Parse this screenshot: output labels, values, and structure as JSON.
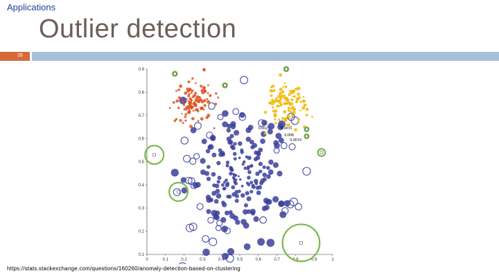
{
  "header": {
    "section": "Applications",
    "title": "Outlier detection",
    "slide_number": "28"
  },
  "footer": {
    "source": "https://stats.stackexchange.com/questions/160260/anomaly-detection-based-on-clustering"
  },
  "chart_data": {
    "type": "scatter",
    "xlim": [
      0,
      1
    ],
    "ylim": [
      0.1,
      0.9
    ],
    "x_ticks": [
      "0",
      "0.1",
      "0.2",
      "0.3",
      "0.4",
      "0.5",
      "0.6",
      "0.7",
      "0.8",
      "0.9",
      "1"
    ],
    "y_ticks": [
      "0.1",
      "0.2",
      "0.3",
      "0.4",
      "0.5",
      "0.6",
      "0.7",
      "0.8",
      "0.9"
    ],
    "grid": false,
    "colors": {
      "red_cluster": "#e0501e",
      "yellow_cluster": "#f0b800",
      "blue_cluster": "#3b3f9c",
      "outlier": "#79b84a"
    },
    "annotations": [
      {
        "text": "0.0035",
        "x": 0.72,
        "y": 0.64
      },
      {
        "text": "0.008",
        "x": 0.74,
        "y": 0.61
      },
      {
        "text": "0.0019",
        "x": 0.77,
        "y": 0.59
      },
      {
        "text": "0.0025",
        "x": 0.6,
        "y": 0.64
      }
    ],
    "outliers": [
      {
        "x": 0.15,
        "y": 0.88,
        "r": 0.012
      },
      {
        "x": 0.75,
        "y": 0.9,
        "r": 0.012
      },
      {
        "x": 0.42,
        "y": 0.83,
        "r": 0.012
      },
      {
        "x": 0.86,
        "y": 0.64,
        "r": 0.008
      },
      {
        "x": 0.86,
        "y": 0.61,
        "r": 0.008
      },
      {
        "x": 0.94,
        "y": 0.54,
        "r": 0.02
      },
      {
        "x": 0.04,
        "y": 0.53,
        "r": 0.05
      },
      {
        "x": 0.17,
        "y": 0.37,
        "r": 0.05
      },
      {
        "x": 0.83,
        "y": 0.15,
        "r": 0.1
      }
    ],
    "red_cluster": {
      "center": [
        0.25,
        0.76
      ],
      "spread": [
        0.05,
        0.045
      ],
      "count": 110
    },
    "yellow_cluster": {
      "center": [
        0.75,
        0.75
      ],
      "spread": [
        0.05,
        0.05
      ],
      "count": 110
    },
    "blue_cluster": {
      "center": [
        0.49,
        0.45
      ],
      "spread": [
        0.14,
        0.14
      ],
      "count": 230
    }
  }
}
